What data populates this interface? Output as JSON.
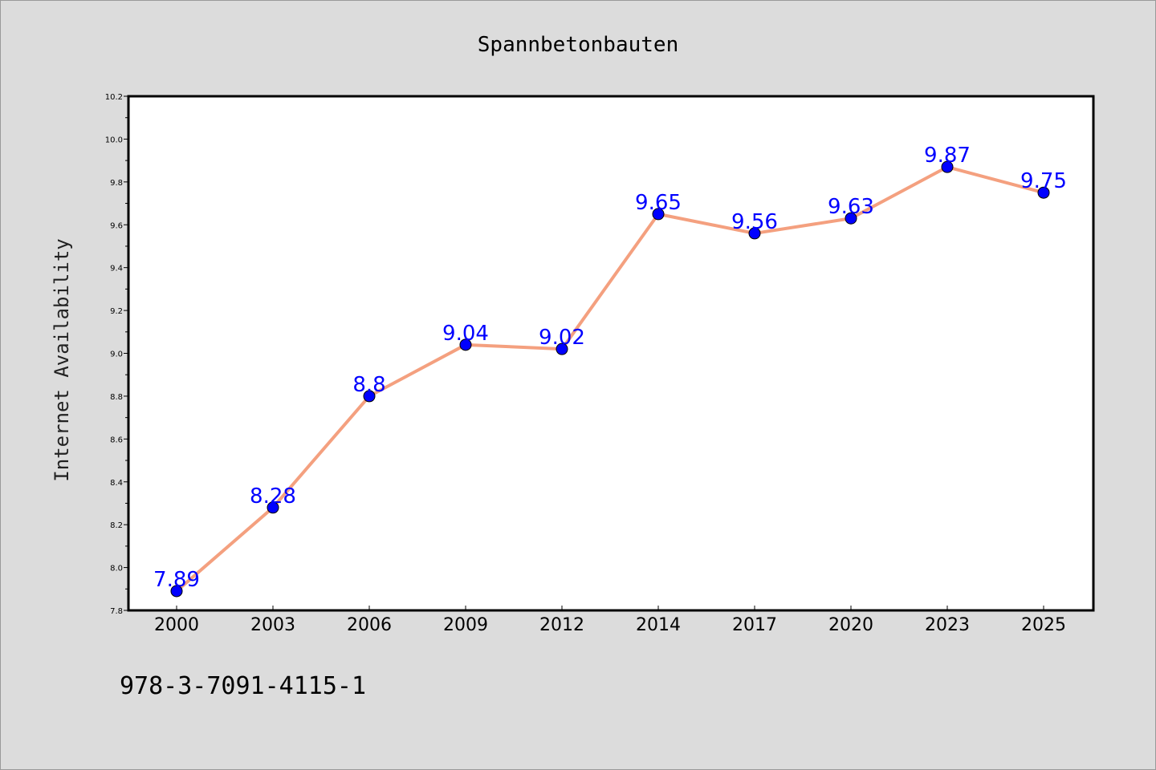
{
  "chart_data": {
    "type": "line",
    "title": "Spannbetonbauten",
    "xlabel": "",
    "ylabel": "Internet Availability",
    "categories": [
      "2000",
      "2003",
      "2006",
      "2009",
      "2012",
      "2014",
      "2017",
      "2020",
      "2023",
      "2025"
    ],
    "series": [
      {
        "values": [
          7.89,
          8.28,
          8.8,
          9.04,
          9.02,
          9.65,
          9.56,
          9.63,
          9.87,
          9.75
        ]
      }
    ],
    "data_labels": [
      "7.89",
      "8.28",
      "8.8",
      "9.04",
      "9.02",
      "9.65",
      "9.56",
      "9.63",
      "9.87",
      "9.75"
    ],
    "ylim": [
      7.8,
      10.2
    ],
    "yticks": [
      "7.8",
      "8.0",
      "8.2",
      "8.4",
      "8.6",
      "8.8",
      "9.0",
      "9.2",
      "9.4",
      "9.6",
      "9.8",
      "10.0",
      "10.2"
    ],
    "grid": false,
    "legend": "none",
    "line_color": "#f4a07f",
    "marker_color": "#0000ff",
    "label_color": "#0000ff"
  },
  "footer": {
    "isbn": "978-3-7091-4115-1"
  },
  "colors": {
    "background": "#dcdcdc",
    "plot_background": "#ffffff"
  }
}
